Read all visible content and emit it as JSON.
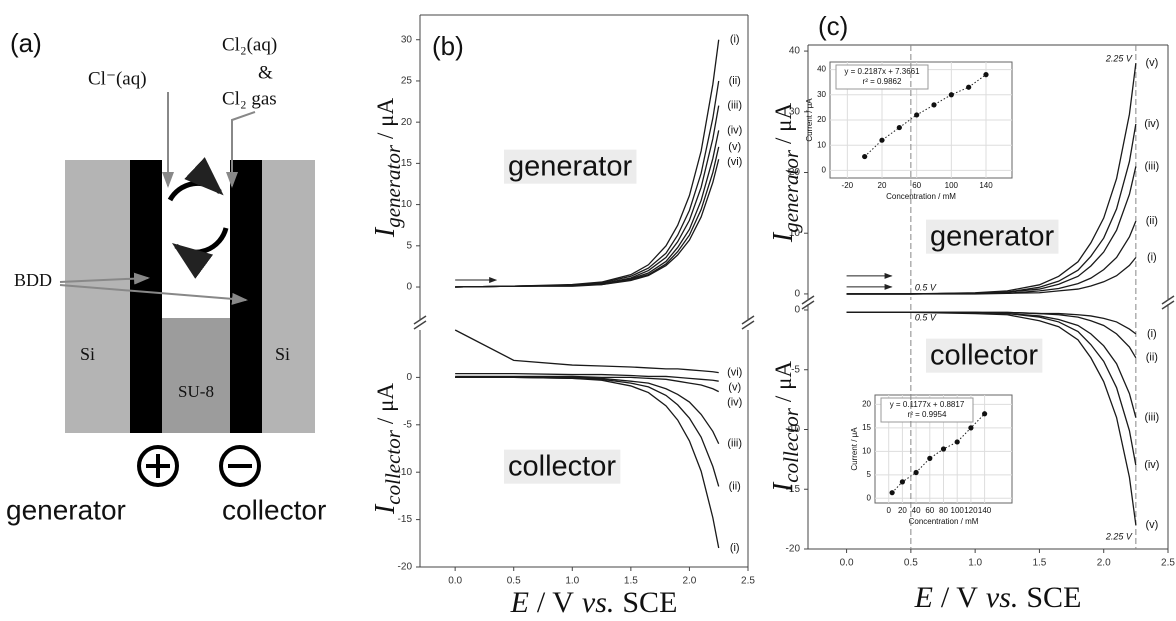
{
  "diagram": {
    "label": "(a)",
    "species": [
      "Cl⁻(aq)",
      "Cl₂(aq)",
      "&",
      "Cl₂ gas"
    ],
    "electrode": "BDD",
    "substrate": [
      "Si",
      "Si"
    ],
    "spacer": "SU-8",
    "terminals": [
      "generator",
      "collector"
    ]
  },
  "chart_data": [
    {
      "type": "line",
      "label": "(b)",
      "color": "#1a1a1a",
      "x": [
        0,
        0.5,
        1.0,
        1.25,
        1.5,
        1.65,
        1.8,
        1.9,
        2.0,
        2.1,
        2.2,
        2.25
      ],
      "xlim": [
        -0.3,
        2.5
      ],
      "xticks": [
        {
          "value": 0,
          "label": "0.0"
        },
        0.5,
        {
          "value": 1,
          "label": "1.0"
        },
        1.5,
        {
          "value": 2,
          "label": "2.0"
        },
        2.5
      ],
      "xlabel": [
        "E",
        "/ V",
        "vs.",
        "SCE"
      ],
      "panels": [
        {
          "annotation": "generator",
          "ylabel": {
            "symbol": "I",
            "subscript": "generator",
            "unit": "/ μA"
          },
          "ylim": [
            -4,
            33
          ],
          "yticks": [
            0,
            5,
            10,
            15,
            20,
            25,
            30
          ],
          "series": [
            {
              "name": "(i)",
              "values": [
                0,
                0.1,
                0.3,
                0.6,
                1.5,
                2.7,
                5.0,
                7.5,
                11.1,
                16.5,
                24.6,
                30
              ]
            },
            {
              "name": "(ii)",
              "values": [
                0,
                0.1,
                0.2,
                0.5,
                1.3,
                2.3,
                4.1,
                6.3,
                9.3,
                13.8,
                20.5,
                25
              ]
            },
            {
              "name": "(iii)",
              "values": [
                0,
                0.1,
                0.2,
                0.4,
                1.1,
                2.0,
                3.6,
                5.5,
                8.1,
                12.1,
                18.0,
                22
              ]
            },
            {
              "name": "(iv)",
              "values": [
                0,
                0.1,
                0.2,
                0.4,
                1.0,
                1.7,
                3.1,
                4.8,
                7.0,
                10.5,
                15.6,
                19
              ]
            },
            {
              "name": "(v)",
              "values": [
                0,
                0.1,
                0.2,
                0.3,
                0.9,
                1.5,
                2.8,
                4.3,
                6.3,
                9.4,
                13.9,
                17
              ]
            },
            {
              "name": "(vi)",
              "values": [
                0,
                0.1,
                0.1,
                0.3,
                0.8,
                1.4,
                2.6,
                3.9,
                5.7,
                8.5,
                12.7,
                15.5
              ]
            }
          ]
        },
        {
          "annotation": "collector",
          "ylabel": {
            "symbol": "I",
            "subscript": "collector",
            "unit": "/ μA"
          },
          "ylim": [
            -20,
            5
          ],
          "yticks": [
            0,
            -5,
            -10,
            -15,
            -20
          ],
          "series": [
            {
              "name": "(i)",
              "values": [
                0,
                0,
                -0.1,
                -0.3,
                -0.9,
                -1.6,
                -3.0,
                -4.5,
                -6.7,
                -9.9,
                -14.8,
                -18
              ]
            },
            {
              "name": "(ii)",
              "values": [
                0,
                0,
                -0.1,
                -0.2,
                -0.6,
                -1.0,
                -1.9,
                -2.9,
                -4.3,
                -6.3,
                -9.4,
                -11.5
              ]
            },
            {
              "name": "(iii)",
              "values": [
                0,
                0,
                0,
                -0.1,
                -0.4,
                -0.6,
                -1.2,
                -1.8,
                -2.6,
                -3.9,
                -5.7,
                -7
              ]
            },
            {
              "name": "(iv)",
              "values": [
                0.1,
                0.1,
                0.1,
                0,
                0,
                -0.1,
                -0.2,
                -0.4,
                -0.6,
                -0.8,
                -1.2,
                -1.5
              ]
            },
            {
              "name": "(v)",
              "values": [
                0.4,
                0.4,
                0.3,
                0.3,
                0.2,
                0.1,
                0.1,
                0,
                -0.1,
                -0.2,
                -0.3,
                -0.4
              ]
            },
            {
              "name": "(vi)",
              "values": [
                5,
                1.8,
                1.3,
                1.2,
                1.1,
                1.0,
                0.9,
                0.9,
                0.8,
                0.7,
                0.6,
                0.5
              ]
            }
          ]
        }
      ]
    },
    {
      "type": "line",
      "label": "(c)",
      "color": "#1a1a1a",
      "x": [
        0,
        0.5,
        1.0,
        1.25,
        1.5,
        1.65,
        1.8,
        1.9,
        2.0,
        2.1,
        2.2,
        2.25
      ],
      "xlim": [
        -0.3,
        2.5
      ],
      "xticks": [
        {
          "value": 0,
          "label": "0.0"
        },
        0.5,
        {
          "value": 1,
          "label": "1.0"
        },
        1.5,
        {
          "value": 2,
          "label": "2.0"
        },
        2.5
      ],
      "xlabel": [
        "E",
        "/ V",
        "vs.",
        "SCE"
      ],
      "panels": [
        {
          "annotation": "generator",
          "ylabel": {
            "symbol": "I",
            "subscript": "generator",
            "unit": "/ μA"
          },
          "ylim": [
            -1,
            41
          ],
          "yticks": [
            0,
            10,
            20,
            30,
            40
          ],
          "vlines": [
            {
              "value": 0.5,
              "label": "0.5 V"
            },
            {
              "value": 2.25,
              "label": "2.25 V"
            }
          ],
          "series": [
            {
              "name": "(i)",
              "values": [
                0,
                0,
                0,
                0.1,
                0.2,
                0.5,
                0.8,
                1.3,
                2.0,
                3.0,
                4.7,
                6
              ]
            },
            {
              "name": "(ii)",
              "values": [
                0,
                0,
                0.1,
                0.1,
                0.5,
                0.9,
                1.7,
                2.6,
                4.0,
                6.0,
                9.4,
                12
              ]
            },
            {
              "name": "(iii)",
              "values": [
                0,
                0,
                0.1,
                0.3,
                0.8,
                1.6,
                2.9,
                4.6,
                6.9,
                10.5,
                16.4,
                21
              ]
            },
            {
              "name": "(iv)",
              "values": [
                0,
                0,
                0.1,
                0.3,
                1.1,
                2.1,
                3.9,
                6.2,
                9.2,
                14.0,
                21.8,
                28
              ]
            },
            {
              "name": "(v)",
              "values": [
                0,
                0,
                0.2,
                0.5,
                1.5,
                2.9,
                5.3,
                8.4,
                12.5,
                19.0,
                29.6,
                38
              ]
            }
          ],
          "inset": {
            "type": "scatter",
            "equation": "y = 0.2187x + 7.3661",
            "r2": "r² = 0.9862",
            "grid": true,
            "xlabel": "Concentration / mM",
            "ylabel": "Current / μA",
            "xlim": [
              -40,
              170
            ],
            "xticks": [
              -20,
              20,
              60,
              100,
              140
            ],
            "ylim": [
              -3,
              43
            ],
            "yticks": [
              0,
              10,
              20,
              30,
              40
            ],
            "x": [
              0,
              20,
              40,
              60,
              80,
              100,
              120,
              140
            ],
            "values": [
              5.5,
              12,
              17,
              22,
              26,
              30,
              33,
              38
            ]
          }
        },
        {
          "annotation": "collector",
          "ylabel": {
            "symbol": "I",
            "subscript": "collector",
            "unit": "/ μA"
          },
          "ylim": [
            -20,
            0.5
          ],
          "yticks": [
            0,
            -5,
            -10,
            -15,
            -20
          ],
          "vlines": [
            {
              "value": 0.5,
              "label": "0.5 V"
            },
            {
              "value": 2.25,
              "label": "2.25 V"
            }
          ],
          "series": [
            {
              "name": "(i)",
              "values": [
                -0.2,
                -0.2,
                -0.2,
                -0.2,
                -0.3,
                -0.3,
                -0.4,
                -0.5,
                -0.7,
                -1.0,
                -1.6,
                -2
              ]
            },
            {
              "name": "(ii)",
              "values": [
                -0.2,
                -0.2,
                -0.2,
                -0.2,
                -0.3,
                -0.4,
                -0.6,
                -0.9,
                -1.3,
                -2.0,
                -3.1,
                -4
              ]
            },
            {
              "name": "(iii)",
              "values": [
                -0.2,
                -0.2,
                -0.2,
                -0.3,
                -0.5,
                -0.8,
                -1.3,
                -2.0,
                -3.0,
                -4.5,
                -7.0,
                -9
              ]
            },
            {
              "name": "(iv)",
              "values": [
                -0.2,
                -0.2,
                -0.2,
                -0.3,
                -0.6,
                -1.0,
                -1.8,
                -2.9,
                -4.3,
                -6.5,
                -10.1,
                -13
              ]
            },
            {
              "name": "(v)",
              "values": [
                -0.2,
                -0.2,
                -0.3,
                -0.4,
                -0.9,
                -1.4,
                -2.5,
                -4.0,
                -6.0,
                -9.0,
                -14.0,
                -18
              ]
            }
          ],
          "inset": {
            "type": "scatter",
            "equation": "y = 0.1177x + 0.8817",
            "r2": "r² = 0.9954",
            "grid": true,
            "xlabel": "Concentration / mM",
            "ylabel": "Current / μA",
            "xlim": [
              -20,
              180
            ],
            "xticks": [
              0,
              20,
              40,
              60,
              80,
              100,
              120,
              140
            ],
            "ylim": [
              -1,
              22
            ],
            "yticks": [
              0,
              5,
              10,
              15,
              20
            ],
            "x": [
              5,
              20,
              40,
              60,
              80,
              100,
              120,
              140
            ],
            "values": [
              1.2,
              3.5,
              5.5,
              8.5,
              10.5,
              12,
              15,
              18
            ]
          }
        }
      ]
    }
  ]
}
